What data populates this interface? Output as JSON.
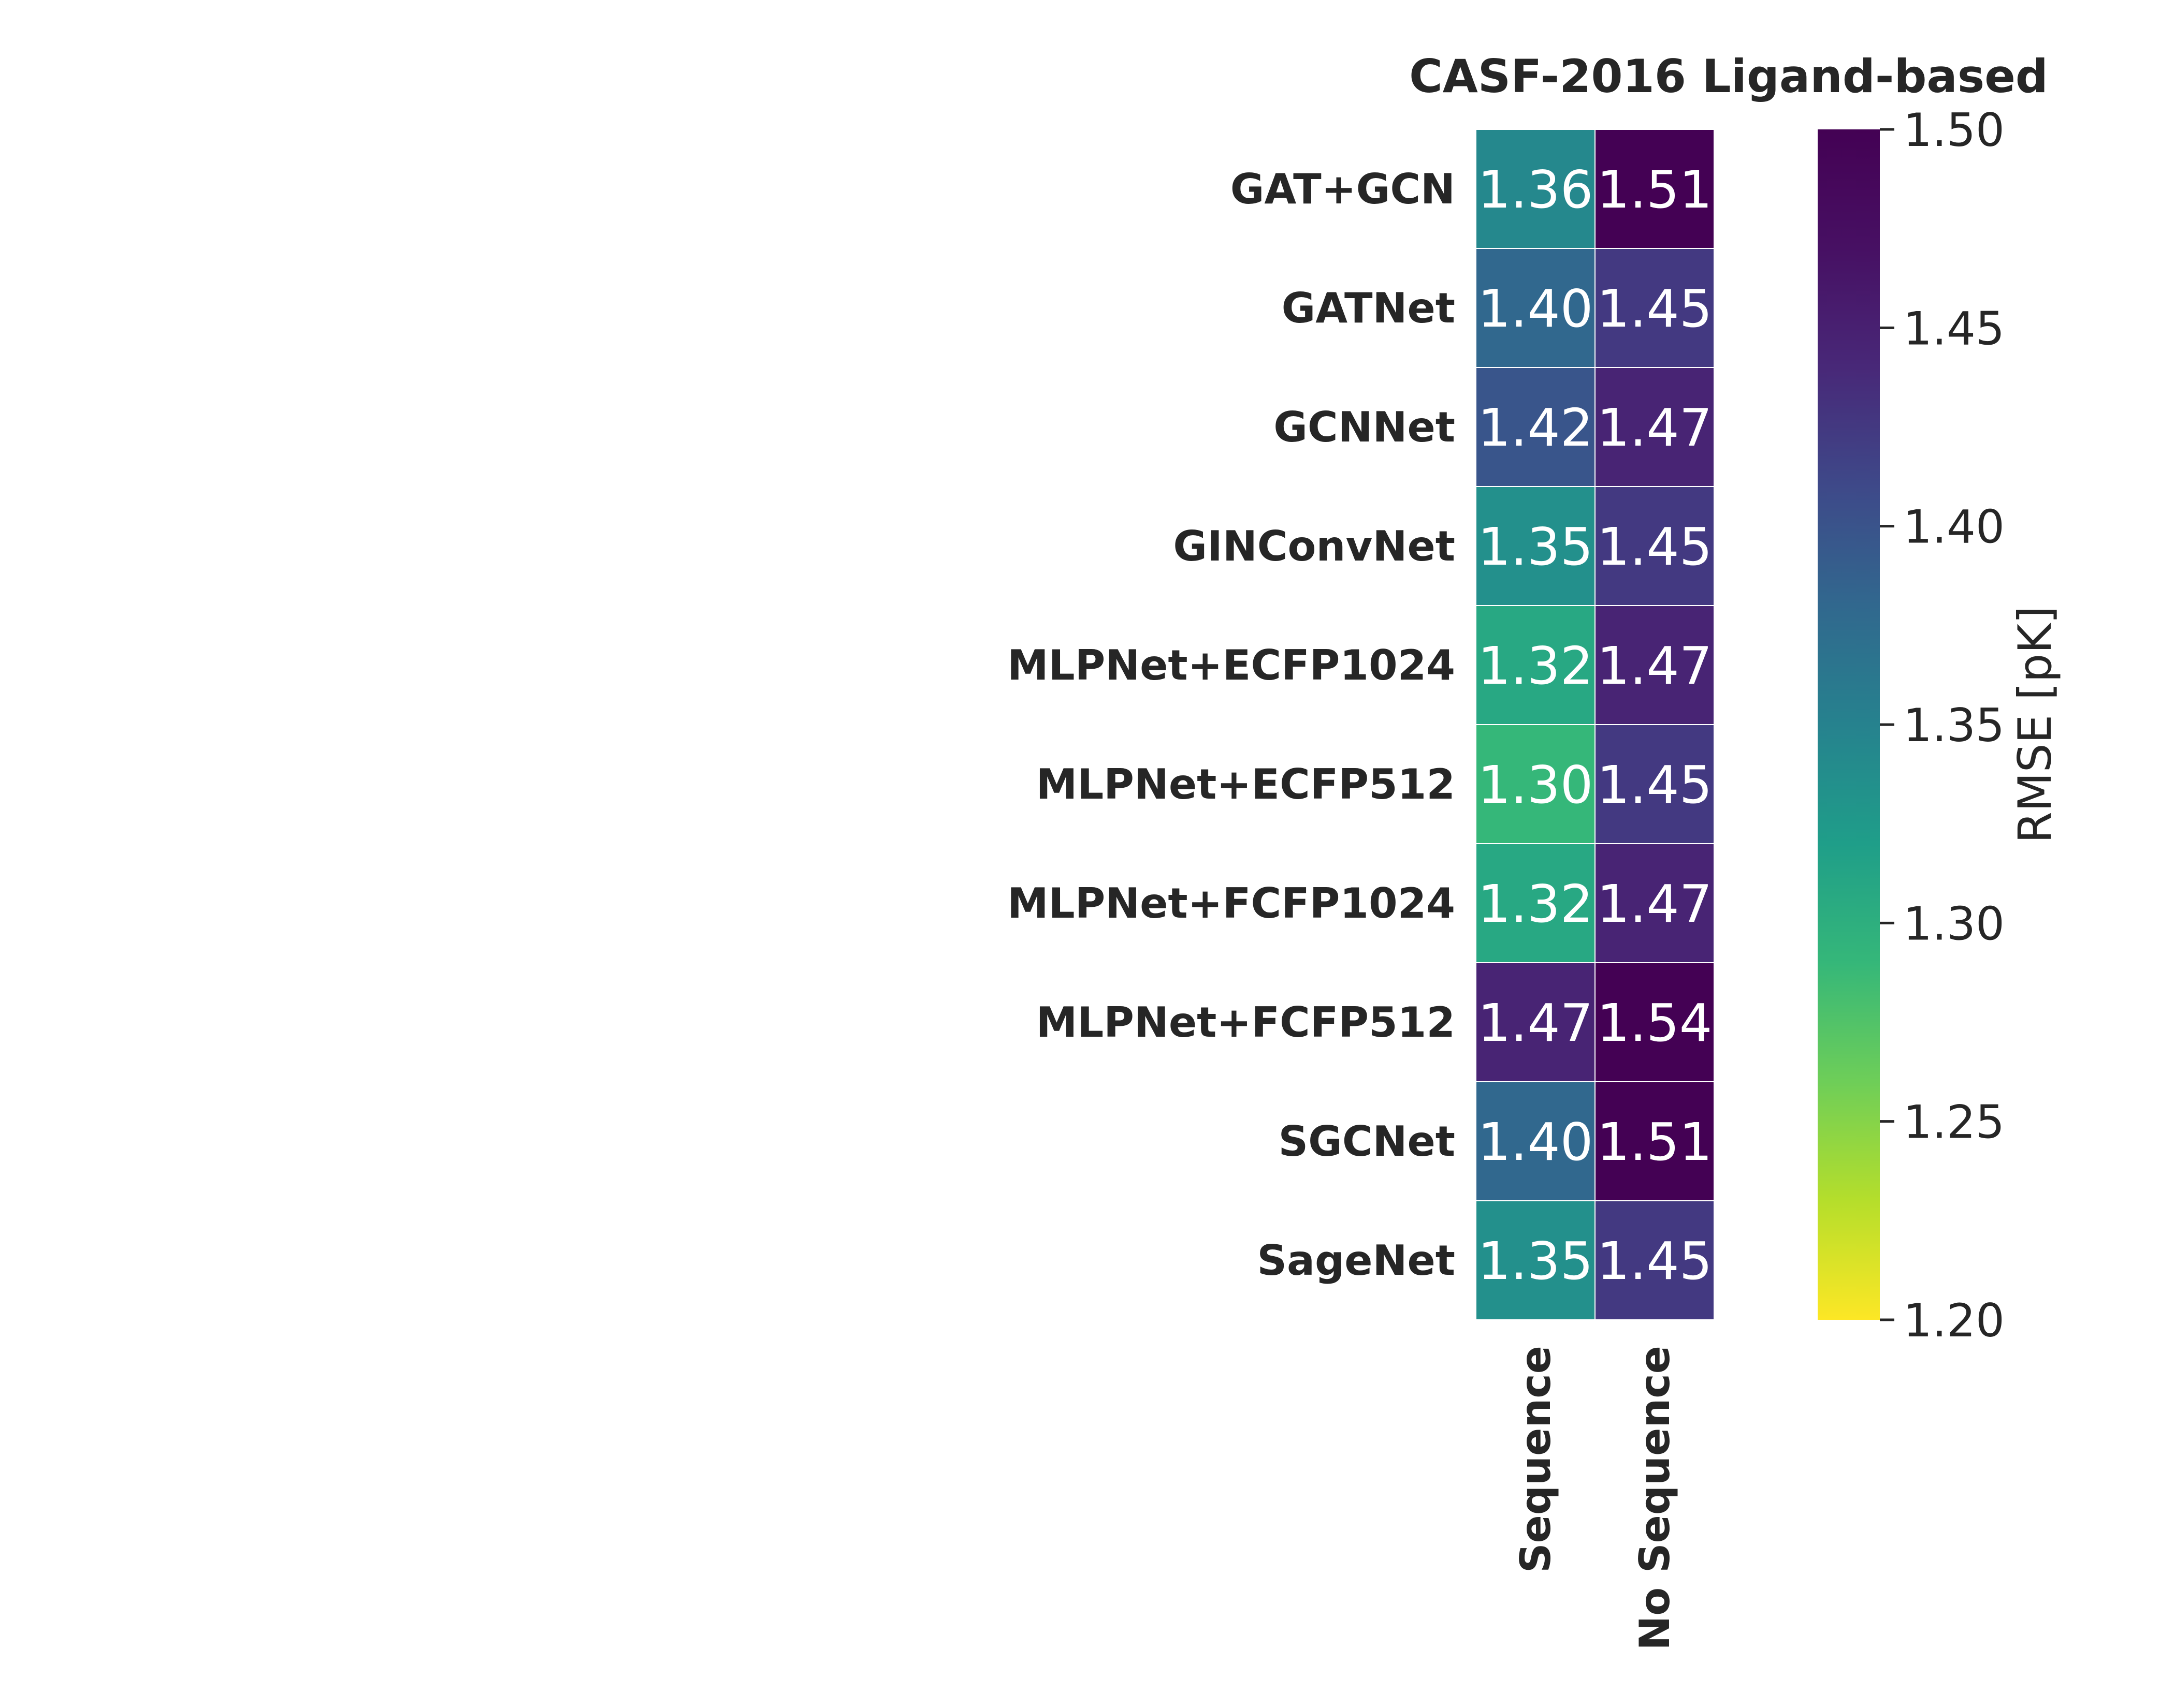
{
  "chart_data": {
    "type": "heatmap",
    "title": "CASF-2016 Ligand-based",
    "rows": [
      "GAT+GCN",
      "GATNet",
      "GCNNet",
      "GINConvNet",
      "MLPNet+ECFP1024",
      "MLPNet+ECFP512",
      "MLPNet+FCFP1024",
      "MLPNet+FCFP512",
      "SGCNet",
      "SageNet"
    ],
    "columns": [
      "Sequence",
      "No Sequence"
    ],
    "values": [
      [
        1.36,
        1.51
      ],
      [
        1.4,
        1.45
      ],
      [
        1.42,
        1.47
      ],
      [
        1.35,
        1.45
      ],
      [
        1.32,
        1.47
      ],
      [
        1.3,
        1.45
      ],
      [
        1.32,
        1.47
      ],
      [
        1.47,
        1.54
      ],
      [
        1.4,
        1.51
      ],
      [
        1.35,
        1.45
      ]
    ],
    "value_labels": [
      [
        "1.36",
        "1.51"
      ],
      [
        "1.40",
        "1.45"
      ],
      [
        "1.42",
        "1.47"
      ],
      [
        "1.35",
        "1.45"
      ],
      [
        "1.32",
        "1.47"
      ],
      [
        "1.30",
        "1.45"
      ],
      [
        "1.32",
        "1.47"
      ],
      [
        "1.47",
        "1.54"
      ],
      [
        "1.40",
        "1.51"
      ],
      [
        "1.35",
        "1.45"
      ]
    ],
    "colormap": "viridis_r",
    "colorbar": {
      "label": "RMSE [pK]",
      "range": [
        1.2,
        1.5
      ],
      "ticks": [
        1.2,
        1.25,
        1.3,
        1.35,
        1.4,
        1.45,
        1.5
      ],
      "tick_labels": [
        "1.20",
        "1.25",
        "1.30",
        "1.35",
        "1.40",
        "1.45",
        "1.50"
      ],
      "placement": "right"
    }
  }
}
